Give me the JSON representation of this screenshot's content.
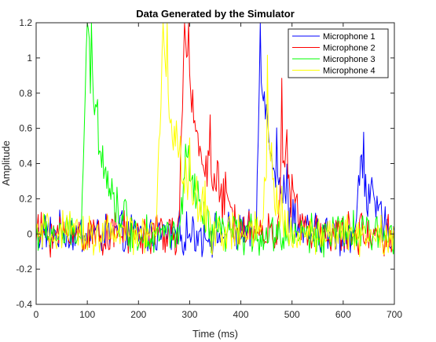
{
  "chart_data": {
    "type": "line",
    "title": "Data Generated by the Simulator",
    "xlabel": "Time (ms)",
    "ylabel": "Amplitude",
    "xlim": [
      0,
      700
    ],
    "ylim": [
      -0.4,
      1.2
    ],
    "xticks": [
      0,
      100,
      200,
      300,
      400,
      500,
      600,
      700
    ],
    "yticks": [
      -0.4,
      -0.2,
      0,
      0.2,
      0.4,
      0.6,
      0.8,
      1,
      1.2
    ],
    "xtick_labels": [
      "0",
      "100",
      "200",
      "300",
      "400",
      "500",
      "600",
      "700"
    ],
    "ytick_labels": [
      "-0.4",
      "-0.2",
      "0",
      "0.2",
      "0.4",
      "0.6",
      "0.8",
      "1",
      "1.2"
    ],
    "grid": false,
    "legend_position": "top-right",
    "noise_amplitude": 0.09,
    "series": [
      {
        "name": "Microphone 1",
        "color": "#0000ff",
        "pulses": [
          {
            "x": [
              430,
              438,
              445,
              455,
              470,
              490,
              510,
              530
            ],
            "y": [
              0,
              1.1,
              0.8,
              0.55,
              0.35,
              0.15,
              0.05,
              0
            ]
          },
          {
            "x": [
              625,
              635,
              640,
              655,
              670,
              690
            ],
            "y": [
              0,
              0.48,
              0.32,
              0.18,
              0.08,
              0
            ]
          }
        ]
      },
      {
        "name": "Microphone 2",
        "color": "#ff0000",
        "pulses": [
          {
            "x": [
              278,
              290,
              298,
              315,
              340,
              370,
              400,
              430
            ],
            "y": [
              0,
              1.1,
              0.85,
              0.55,
              0.35,
              0.15,
              0.05,
              0
            ]
          },
          {
            "x": [
              470,
              480,
              490,
              510,
              530
            ],
            "y": [
              0,
              0.48,
              0.3,
              0.1,
              0
            ]
          }
        ]
      },
      {
        "name": "Microphone 3",
        "color": "#00ff00",
        "pulses": [
          {
            "x": [
              88,
              100,
              108,
              125,
              145,
              165,
              190
            ],
            "y": [
              0,
              1.1,
              0.85,
              0.55,
              0.25,
              0.1,
              0
            ]
          },
          {
            "x": [
              280,
              295,
              305,
              320,
              340
            ],
            "y": [
              0,
              0.45,
              0.25,
              0.12,
              0
            ]
          }
        ]
      },
      {
        "name": "Microphone 4",
        "color": "#ffff00",
        "pulses": [
          {
            "x": [
              235,
              248,
              256,
              275,
              300,
              330,
              360
            ],
            "y": [
              0,
              1.1,
              0.8,
              0.5,
              0.25,
              0.1,
              0
            ]
          },
          {
            "x": [
              440,
              452,
              460,
              480,
              500
            ],
            "y": [
              0,
              0.48,
              0.28,
              0.1,
              0
            ]
          }
        ]
      }
    ]
  }
}
